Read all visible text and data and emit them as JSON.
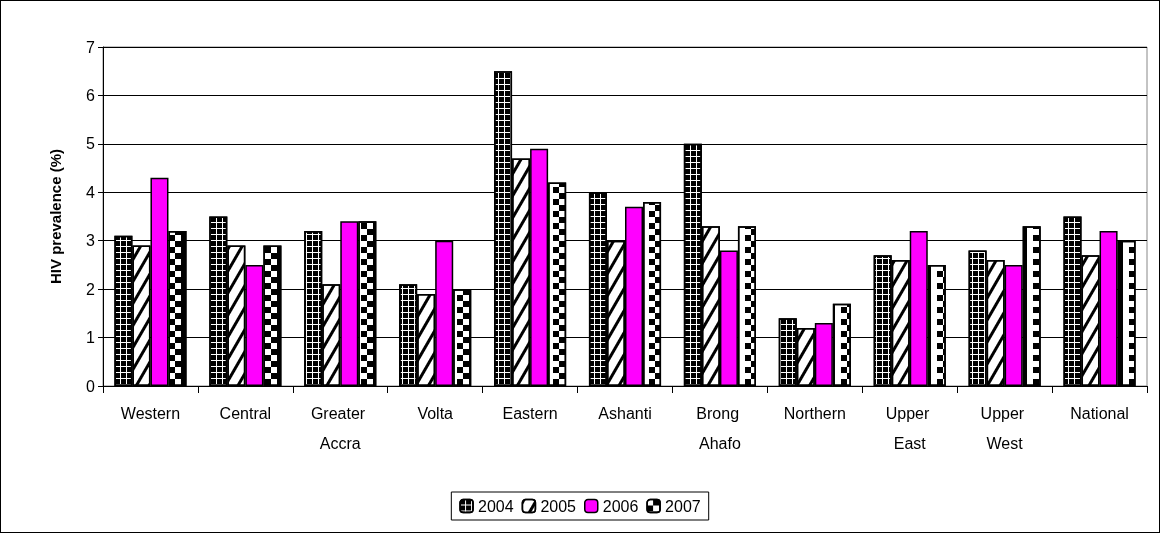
{
  "chart_data": {
    "type": "bar",
    "ylabel": "HIV prevalence (%)",
    "categories": [
      "Western",
      "Central",
      "Greater Accra",
      "Volta",
      "Eastern",
      "Ashanti",
      "Brong Ahafo",
      "Northern",
      "Upper East",
      "Upper West",
      "National"
    ],
    "series": [
      {
        "name": "2004",
        "color": "#ffffff",
        "values": [
          3.1,
          3.5,
          3.2,
          2.1,
          6.5,
          4.0,
          5.0,
          1.4,
          2.7,
          2.8,
          3.5
        ]
      },
      {
        "name": "2005",
        "color": "#ffffff",
        "values": [
          2.9,
          2.9,
          2.1,
          1.9,
          4.7,
          3.0,
          3.3,
          1.2,
          2.6,
          2.6,
          2.7
        ]
      },
      {
        "name": "2006",
        "color": "#ff00ff",
        "values": [
          4.3,
          2.5,
          3.4,
          3.0,
          4.9,
          3.7,
          2.8,
          1.3,
          3.2,
          2.5,
          3.2
        ]
      },
      {
        "name": "2007",
        "color": "#ffffff",
        "values": [
          3.2,
          2.9,
          3.4,
          2.0,
          4.2,
          3.8,
          3.3,
          1.7,
          2.5,
          3.3,
          3.0
        ]
      }
    ],
    "ylim": [
      0,
      7
    ],
    "yticks": [
      0,
      1,
      2,
      3,
      4,
      5,
      6,
      7
    ],
    "grid": "y",
    "legend": "bottom"
  }
}
